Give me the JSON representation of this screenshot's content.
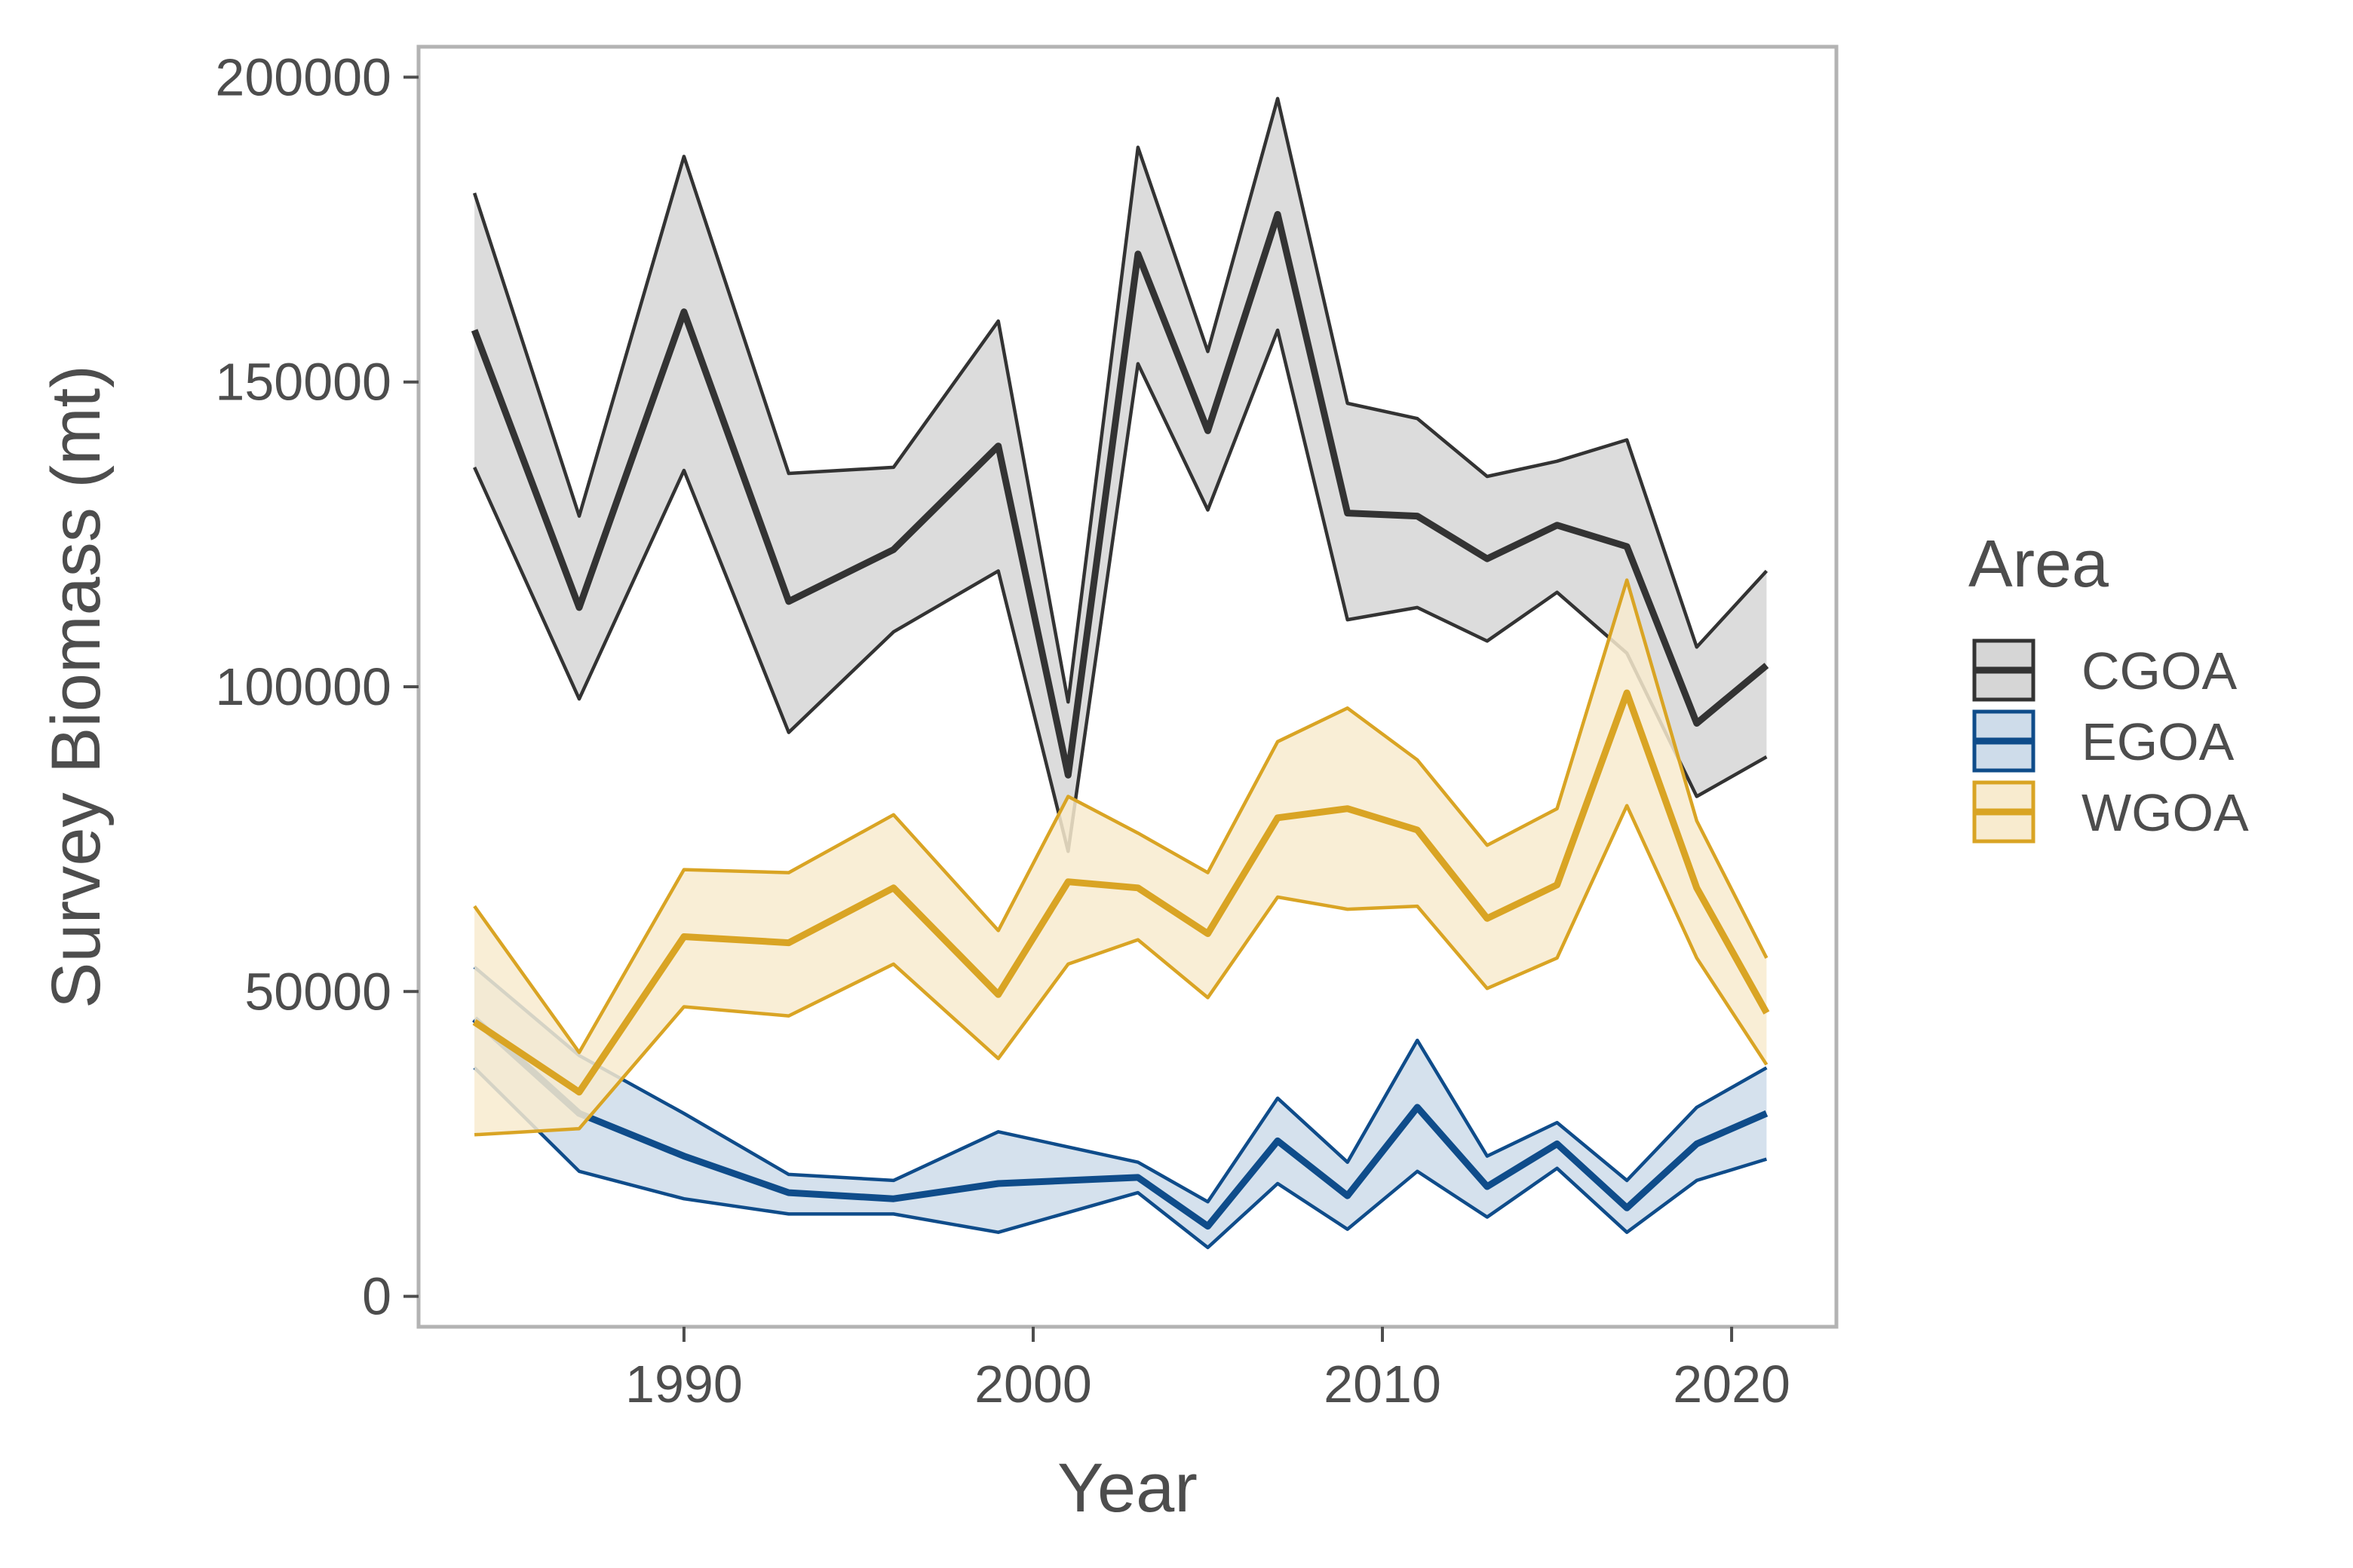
{
  "chart_data": {
    "type": "line",
    "xlabel": "Year",
    "ylabel": "Survey Biomass (mt)",
    "xlim": [
      1982.4,
      2023
    ],
    "ylim": [
      -5000,
      205000
    ],
    "xticks": [
      1990,
      2000,
      2010,
      2020
    ],
    "xtick_labels": [
      "1990",
      "2000",
      "2010",
      "2020"
    ],
    "yticks": [
      0,
      50000,
      100000,
      150000,
      200000
    ],
    "ytick_labels": [
      "0",
      "50000",
      "100000",
      "150000",
      "200000"
    ],
    "grid": false,
    "legend": {
      "title": "Area",
      "position": "right"
    },
    "series": [
      {
        "name": "CGOA",
        "color": "#333333",
        "fill": "#d6d6d6",
        "x": [
          1984,
          1987,
          1990,
          1993,
          1996,
          1999,
          2001,
          2003,
          2005,
          2007,
          2009,
          2011,
          2013,
          2015,
          2017,
          2019,
          2021
        ],
        "values": [
          158500,
          113000,
          161500,
          114000,
          122500,
          139500,
          85500,
          171000,
          142000,
          177500,
          128500,
          128000,
          121000,
          126500,
          123000,
          94000,
          103500
        ],
        "lower": [
          136000,
          98000,
          135500,
          92500,
          109000,
          119000,
          73000,
          153000,
          129000,
          158500,
          111000,
          113000,
          107500,
          115500,
          105500,
          82000,
          88500
        ],
        "upper": [
          181000,
          128000,
          187000,
          135000,
          136000,
          160000,
          97500,
          188500,
          155000,
          196500,
          146500,
          144000,
          134500,
          137000,
          140500,
          106500,
          119000
        ]
      },
      {
        "name": "EGOA",
        "color": "#0f4c8a",
        "fill": "#cedcea",
        "x": [
          1984,
          1987,
          1990,
          1993,
          1996,
          1999,
          2003,
          2005,
          2007,
          2009,
          2011,
          2013,
          2015,
          2017,
          2019,
          2021
        ],
        "values": [
          45500,
          30000,
          23000,
          17000,
          16000,
          18500,
          19500,
          11500,
          25500,
          16500,
          31000,
          18000,
          25000,
          14500,
          25000,
          30000
        ],
        "lower": [
          37500,
          20500,
          16000,
          13500,
          13500,
          10500,
          17000,
          8000,
          18500,
          11000,
          20500,
          13000,
          21000,
          10500,
          19000,
          22500
        ],
        "upper": [
          54000,
          39500,
          30000,
          20000,
          19000,
          27000,
          22000,
          15500,
          32500,
          22000,
          42000,
          23000,
          28500,
          19000,
          31000,
          37500
        ]
      },
      {
        "name": "WGOA",
        "color": "#d9a424",
        "fill": "#f8ebcf",
        "x": [
          1984,
          1987,
          1990,
          1993,
          1996,
          1999,
          2001,
          2003,
          2005,
          2007,
          2009,
          2011,
          2013,
          2015,
          2017,
          2019,
          2021
        ],
        "values": [
          45000,
          33500,
          59000,
          58000,
          67000,
          49500,
          68000,
          67000,
          59500,
          78500,
          80000,
          76500,
          62000,
          67500,
          99000,
          67000,
          46500
        ],
        "lower": [
          26500,
          27500,
          47500,
          46000,
          54500,
          39000,
          54500,
          58500,
          49000,
          65500,
          63500,
          64000,
          50500,
          55500,
          80500,
          55500,
          38000
        ],
        "upper": [
          64000,
          40000,
          70000,
          69500,
          79000,
          60000,
          82000,
          76000,
          69500,
          91000,
          96500,
          88000,
          74000,
          80000,
          117500,
          78000,
          55500
        ]
      }
    ]
  }
}
